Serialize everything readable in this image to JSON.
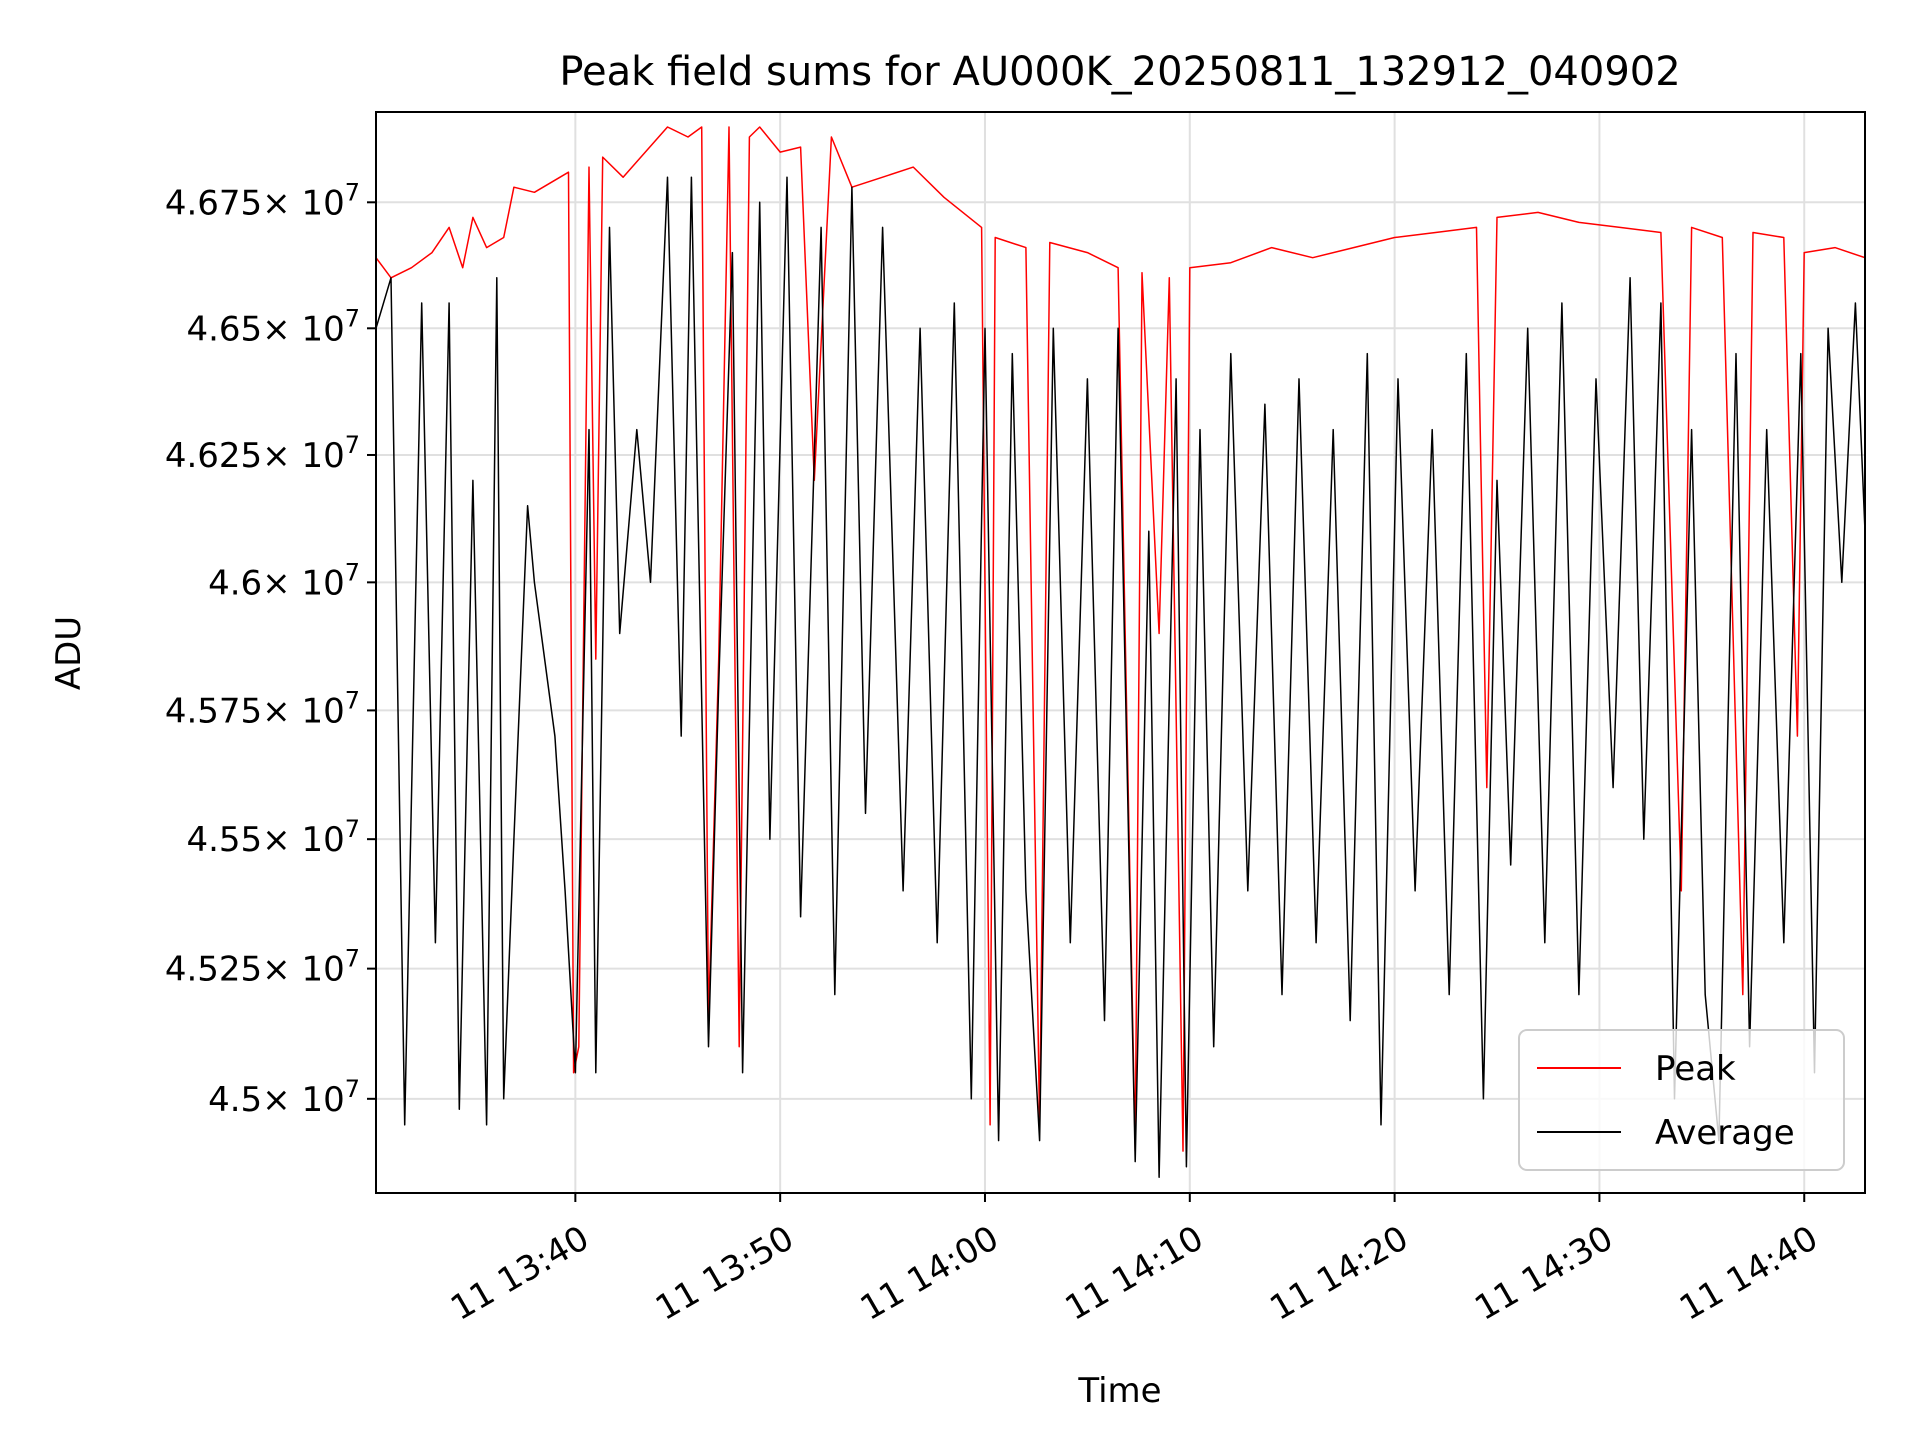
{
  "chart_data": {
    "type": "line",
    "title": "Peak field sums for AU000K_20250811_132912_040902",
    "xlabel": "Time",
    "ylabel": "ADU",
    "x_ticks": [
      {
        "t": "2025-08-11 13:40",
        "label": "11 13:40"
      },
      {
        "t": "2025-08-11 13:50",
        "label": "11 13:50"
      },
      {
        "t": "2025-08-11 14:00",
        "label": "11 14:00"
      },
      {
        "t": "2025-08-11 14:10",
        "label": "11 14:10"
      },
      {
        "t": "2025-08-11 14:20",
        "label": "11 14:20"
      },
      {
        "t": "2025-08-11 14:30",
        "label": "11 14:30"
      },
      {
        "t": "2025-08-11 14:40",
        "label": "11 14:40"
      }
    ],
    "y_ticks": [
      {
        "value": 45000000,
        "mantissa": "4.5"
      },
      {
        "value": 45250000,
        "mantissa": "4.525"
      },
      {
        "value": 45500000,
        "mantissa": "4.55"
      },
      {
        "value": 45750000,
        "mantissa": "4.575"
      },
      {
        "value": 46000000,
        "mantissa": "4.6"
      },
      {
        "value": 46250000,
        "mantissa": "4.625"
      },
      {
        "value": 46500000,
        "mantissa": "4.65"
      },
      {
        "value": 46750000,
        "mantissa": "4.675"
      }
    ],
    "y_tick_suffix": "× 10",
    "y_tick_exponent": "7",
    "xlim": [
      "2025-08-11 13:30:16",
      "2025-08-11 14:42:58"
    ],
    "ylim": [
      44820000,
      46930000
    ],
    "y_scale": "log",
    "grid": true,
    "legend": "lower-right",
    "series": [
      {
        "name": "Peak",
        "color": "#ff0000",
        "points": [
          [
            "2025-08-11 13:30:16",
            46640000
          ],
          [
            "2025-08-11 13:31:00",
            46600000
          ],
          [
            "2025-08-11 13:32:00",
            46620000
          ],
          [
            "2025-08-11 13:33:00",
            46650000
          ],
          [
            "2025-08-11 13:33:50",
            46700000
          ],
          [
            "2025-08-11 13:34:30",
            46620000
          ],
          [
            "2025-08-11 13:35:00",
            46720000
          ],
          [
            "2025-08-11 13:35:40",
            46660000
          ],
          [
            "2025-08-11 13:36:30",
            46680000
          ],
          [
            "2025-08-11 13:37:00",
            46780000
          ],
          [
            "2025-08-11 13:38:00",
            46770000
          ],
          [
            "2025-08-11 13:39:40",
            46810000
          ],
          [
            "2025-08-11 13:39:55",
            45050000
          ],
          [
            "2025-08-11 13:40:10",
            45100000
          ],
          [
            "2025-08-11 13:40:40",
            46820000
          ],
          [
            "2025-08-11 13:41:00",
            45850000
          ],
          [
            "2025-08-11 13:41:20",
            46840000
          ],
          [
            "2025-08-11 13:42:20",
            46800000
          ],
          [
            "2025-08-11 13:44:30",
            46900000
          ],
          [
            "2025-08-11 13:45:30",
            46880000
          ],
          [
            "2025-08-11 13:46:10",
            46900000
          ],
          [
            "2025-08-11 13:46:30",
            45150000
          ],
          [
            "2025-08-11 13:47:00",
            45850000
          ],
          [
            "2025-08-11 13:47:30",
            46900000
          ],
          [
            "2025-08-11 13:48:00",
            45100000
          ],
          [
            "2025-08-11 13:48:30",
            46880000
          ],
          [
            "2025-08-11 13:49:00",
            46900000
          ],
          [
            "2025-08-11 13:50:00",
            46850000
          ],
          [
            "2025-08-11 13:51:00",
            46860000
          ],
          [
            "2025-08-11 13:51:40",
            46200000
          ],
          [
            "2025-08-11 13:52:30",
            46880000
          ],
          [
            "2025-08-11 13:53:30",
            46780000
          ],
          [
            "2025-08-11 13:55:00",
            46800000
          ],
          [
            "2025-08-11 13:56:30",
            46820000
          ],
          [
            "2025-08-11 13:58:00",
            46760000
          ],
          [
            "2025-08-11 13:59:50",
            46700000
          ],
          [
            "2025-08-11 14:00:15",
            44950000
          ],
          [
            "2025-08-11 14:00:30",
            46680000
          ],
          [
            "2025-08-11 14:02:00",
            46660000
          ],
          [
            "2025-08-11 14:02:40",
            44950000
          ],
          [
            "2025-08-11 14:03:10",
            46670000
          ],
          [
            "2025-08-11 14:05:00",
            46650000
          ],
          [
            "2025-08-11 14:06:30",
            46620000
          ],
          [
            "2025-08-11 14:07:20",
            44900000
          ],
          [
            "2025-08-11 14:07:40",
            46610000
          ],
          [
            "2025-08-11 14:08:30",
            45900000
          ],
          [
            "2025-08-11 14:09:00",
            46600000
          ],
          [
            "2025-08-11 14:09:40",
            44900000
          ],
          [
            "2025-08-11 14:10:00",
            46620000
          ],
          [
            "2025-08-11 14:12:00",
            46630000
          ],
          [
            "2025-08-11 14:14:00",
            46660000
          ],
          [
            "2025-08-11 14:16:00",
            46640000
          ],
          [
            "2025-08-11 14:18:00",
            46660000
          ],
          [
            "2025-08-11 14:20:00",
            46680000
          ],
          [
            "2025-08-11 14:22:00",
            46690000
          ],
          [
            "2025-08-11 14:24:00",
            46700000
          ],
          [
            "2025-08-11 14:24:30",
            45600000
          ],
          [
            "2025-08-11 14:25:00",
            46720000
          ],
          [
            "2025-08-11 14:27:00",
            46730000
          ],
          [
            "2025-08-11 14:29:00",
            46710000
          ],
          [
            "2025-08-11 14:31:00",
            46700000
          ],
          [
            "2025-08-11 14:33:00",
            46690000
          ],
          [
            "2025-08-11 14:34:00",
            45400000
          ],
          [
            "2025-08-11 14:34:30",
            46700000
          ],
          [
            "2025-08-11 14:36:00",
            46680000
          ],
          [
            "2025-08-11 14:37:00",
            45200000
          ],
          [
            "2025-08-11 14:37:30",
            46690000
          ],
          [
            "2025-08-11 14:39:00",
            46680000
          ],
          [
            "2025-08-11 14:39:40",
            45700000
          ],
          [
            "2025-08-11 14:40:00",
            46650000
          ],
          [
            "2025-08-11 14:41:30",
            46660000
          ],
          [
            "2025-08-11 14:42:58",
            46640000
          ]
        ]
      },
      {
        "name": "Average",
        "color": "#000000",
        "points": [
          [
            "2025-08-11 13:30:16",
            46500000
          ],
          [
            "2025-08-11 13:31:00",
            46600000
          ],
          [
            "2025-08-11 13:31:40",
            44950000
          ],
          [
            "2025-08-11 13:32:30",
            46550000
          ],
          [
            "2025-08-11 13:33:10",
            45300000
          ],
          [
            "2025-08-11 13:33:50",
            46550000
          ],
          [
            "2025-08-11 13:34:20",
            44980000
          ],
          [
            "2025-08-11 13:35:00",
            46200000
          ],
          [
            "2025-08-11 13:35:40",
            44950000
          ],
          [
            "2025-08-11 13:36:10",
            46600000
          ],
          [
            "2025-08-11 13:36:30",
            45000000
          ],
          [
            "2025-08-11 13:37:00",
            45500000
          ],
          [
            "2025-08-11 13:37:40",
            46150000
          ],
          [
            "2025-08-11 13:38:00",
            46000000
          ],
          [
            "2025-08-11 13:39:00",
            45700000
          ],
          [
            "2025-08-11 13:39:30",
            45400000
          ],
          [
            "2025-08-11 13:40:00",
            45050000
          ],
          [
            "2025-08-11 13:40:40",
            46300000
          ],
          [
            "2025-08-11 13:41:00",
            45050000
          ],
          [
            "2025-08-11 13:41:40",
            46700000
          ],
          [
            "2025-08-11 13:42:10",
            45900000
          ],
          [
            "2025-08-11 13:43:00",
            46300000
          ],
          [
            "2025-08-11 13:43:40",
            46000000
          ],
          [
            "2025-08-11 13:44:30",
            46800000
          ],
          [
            "2025-08-11 13:45:10",
            45700000
          ],
          [
            "2025-08-11 13:45:40",
            46800000
          ],
          [
            "2025-08-11 13:46:30",
            45100000
          ],
          [
            "2025-08-11 13:47:00",
            45800000
          ],
          [
            "2025-08-11 13:47:40",
            46650000
          ],
          [
            "2025-08-11 13:48:10",
            45050000
          ],
          [
            "2025-08-11 13:49:00",
            46750000
          ],
          [
            "2025-08-11 13:49:30",
            45500000
          ],
          [
            "2025-08-11 13:50:20",
            46800000
          ],
          [
            "2025-08-11 13:51:00",
            45350000
          ],
          [
            "2025-08-11 13:52:00",
            46700000
          ],
          [
            "2025-08-11 13:52:40",
            45200000
          ],
          [
            "2025-08-11 13:53:30",
            46780000
          ],
          [
            "2025-08-11 13:54:10",
            45550000
          ],
          [
            "2025-08-11 13:55:00",
            46700000
          ],
          [
            "2025-08-11 13:56:00",
            45400000
          ],
          [
            "2025-08-11 13:56:50",
            46500000
          ],
          [
            "2025-08-11 13:57:40",
            45300000
          ],
          [
            "2025-08-11 13:58:30",
            46550000
          ],
          [
            "2025-08-11 13:59:20",
            45000000
          ],
          [
            "2025-08-11 14:00:00",
            46500000
          ],
          [
            "2025-08-11 14:00:40",
            44920000
          ],
          [
            "2025-08-11 14:01:20",
            46450000
          ],
          [
            "2025-08-11 14:02:00",
            45400000
          ],
          [
            "2025-08-11 14:02:40",
            44920000
          ],
          [
            "2025-08-11 14:03:20",
            46500000
          ],
          [
            "2025-08-11 14:04:10",
            45300000
          ],
          [
            "2025-08-11 14:05:00",
            46400000
          ],
          [
            "2025-08-11 14:05:50",
            45150000
          ],
          [
            "2025-08-11 14:06:30",
            46500000
          ],
          [
            "2025-08-11 14:07:20",
            44880000
          ],
          [
            "2025-08-11 14:08:00",
            46100000
          ],
          [
            "2025-08-11 14:08:30",
            44850000
          ],
          [
            "2025-08-11 14:09:20",
            46400000
          ],
          [
            "2025-08-11 14:09:50",
            44870000
          ],
          [
            "2025-08-11 14:10:30",
            46300000
          ],
          [
            "2025-08-11 14:11:10",
            45100000
          ],
          [
            "2025-08-11 14:12:00",
            46450000
          ],
          [
            "2025-08-11 14:12:50",
            45400000
          ],
          [
            "2025-08-11 14:13:40",
            46350000
          ],
          [
            "2025-08-11 14:14:30",
            45200000
          ],
          [
            "2025-08-11 14:15:20",
            46400000
          ],
          [
            "2025-08-11 14:16:10",
            45300000
          ],
          [
            "2025-08-11 14:17:00",
            46300000
          ],
          [
            "2025-08-11 14:17:50",
            45150000
          ],
          [
            "2025-08-11 14:18:40",
            46450000
          ],
          [
            "2025-08-11 14:19:20",
            44950000
          ],
          [
            "2025-08-11 14:20:10",
            46400000
          ],
          [
            "2025-08-11 14:21:00",
            45400000
          ],
          [
            "2025-08-11 14:21:50",
            46300000
          ],
          [
            "2025-08-11 14:22:40",
            45200000
          ],
          [
            "2025-08-11 14:23:30",
            46450000
          ],
          [
            "2025-08-11 14:24:20",
            45000000
          ],
          [
            "2025-08-11 14:25:00",
            46200000
          ],
          [
            "2025-08-11 14:25:40",
            45450000
          ],
          [
            "2025-08-11 14:26:30",
            46500000
          ],
          [
            "2025-08-11 14:27:20",
            45300000
          ],
          [
            "2025-08-11 14:28:10",
            46550000
          ],
          [
            "2025-08-11 14:29:00",
            45200000
          ],
          [
            "2025-08-11 14:29:50",
            46400000
          ],
          [
            "2025-08-11 14:30:40",
            45600000
          ],
          [
            "2025-08-11 14:31:30",
            46600000
          ],
          [
            "2025-08-11 14:32:10",
            45500000
          ],
          [
            "2025-08-11 14:33:00",
            46550000
          ],
          [
            "2025-08-11 14:33:40",
            45000000
          ],
          [
            "2025-08-11 14:34:30",
            46300000
          ],
          [
            "2025-08-11 14:35:10",
            45200000
          ],
          [
            "2025-08-11 14:35:50",
            44920000
          ],
          [
            "2025-08-11 14:36:40",
            46450000
          ],
          [
            "2025-08-11 14:37:20",
            45100000
          ],
          [
            "2025-08-11 14:38:10",
            46300000
          ],
          [
            "2025-08-11 14:39:00",
            45300000
          ],
          [
            "2025-08-11 14:39:50",
            46450000
          ],
          [
            "2025-08-11 14:40:30",
            45050000
          ],
          [
            "2025-08-11 14:41:10",
            46500000
          ],
          [
            "2025-08-11 14:41:50",
            46000000
          ],
          [
            "2025-08-11 14:42:30",
            46550000
          ],
          [
            "2025-08-11 14:42:58",
            46100000
          ]
        ]
      }
    ]
  }
}
